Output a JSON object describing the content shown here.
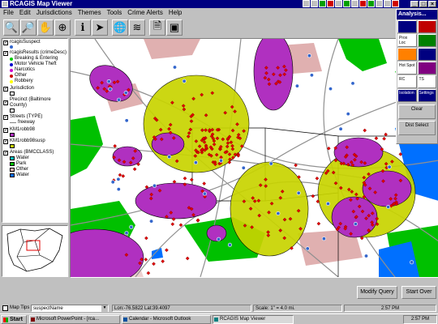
{
  "window": {
    "title": "RCAGIS Map Viewer"
  },
  "menu": [
    "File",
    "Edit",
    "Jurisdictions",
    "Themes",
    "Tools",
    "Crime Alerts",
    "Help"
  ],
  "toolbar": {
    "tools": [
      {
        "name": "zoom-in-icon",
        "glyph": "🔍"
      },
      {
        "name": "zoom-out-icon",
        "glyph": "🔎"
      },
      {
        "name": "pan-icon",
        "glyph": "✋"
      },
      {
        "name": "full-extent-icon",
        "glyph": "⊕"
      },
      {
        "name": "identify-icon",
        "glyph": "ℹ"
      },
      {
        "name": "pointer-icon",
        "glyph": "➤"
      },
      {
        "name": "globe-icon",
        "glyph": "🌐"
      },
      {
        "name": "layers-icon",
        "glyph": "≋"
      },
      {
        "name": "print-icon",
        "glyph": "🗎"
      },
      {
        "name": "save-icon",
        "glyph": "▣"
      }
    ]
  },
  "toc": {
    "layers": [
      {
        "label": "rcagisSuspect",
        "checked": true,
        "sub": [
          {
            "kind": "dot",
            "color": "#3366cc",
            "label": ""
          }
        ]
      },
      {
        "label": "rcagisResults (crimeDesc)",
        "checked": true,
        "sub": [
          {
            "kind": "dot",
            "color": "#00cc00",
            "label": "Breaking & Entering"
          },
          {
            "kind": "dot",
            "color": "#0000cc",
            "label": "Motor Vehicle Theft"
          },
          {
            "kind": "dot",
            "color": "#cc00cc",
            "label": "Narcotics"
          },
          {
            "kind": "dot",
            "color": "#cc0000",
            "label": "Other"
          },
          {
            "kind": "dot",
            "color": "#ffff00",
            "label": "Robbery"
          }
        ]
      },
      {
        "label": "Jurisdiction",
        "checked": true,
        "sub": [
          {
            "kind": "swatch",
            "color": "#ffffff",
            "label": ""
          }
        ]
      },
      {
        "label": "Precinct (Baltimore County)",
        "checked": true,
        "sub": [
          {
            "kind": "swatch",
            "color": "#ffffff",
            "label": ""
          }
        ]
      },
      {
        "label": "Streets (TYPE)",
        "checked": true,
        "sub": [
          {
            "kind": "line",
            "color": "#808080",
            "label": "freeway"
          }
        ]
      },
      {
        "label": "KM1robb98",
        "checked": true,
        "sub": [
          {
            "kind": "swatch",
            "color": "#b030c0",
            "label": ""
          }
        ]
      },
      {
        "label": "KM1robb98susp",
        "checked": true,
        "sub": [
          {
            "kind": "swatch",
            "color": "#c8d400",
            "label": ""
          }
        ]
      },
      {
        "label": "Areas (BMCCLASS)",
        "checked": true,
        "sub": [
          {
            "kind": "swatch",
            "color": "#00c0c0",
            "label": "Water"
          },
          {
            "kind": "swatch",
            "color": "#00c000",
            "label": "Park"
          },
          {
            "kind": "swatch",
            "color": "#e0b0b0",
            "label": "Other"
          },
          {
            "kind": "swatch",
            "color": "#0070ff",
            "label": "Water"
          }
        ]
      }
    ]
  },
  "analysis": {
    "title": "Analysis...",
    "cells": [
      "",
      "",
      "Prox Loc",
      "",
      "",
      "",
      "Hot Spot",
      "",
      "RC",
      "TS",
      "Isolation",
      "Settings"
    ],
    "clear": "Clear",
    "select": "Dist Select"
  },
  "buttons": {
    "modify": "Modify Query",
    "start_over": "Start Over"
  },
  "status": {
    "map_tips": "Map Tips",
    "field": "suspectName",
    "coords": "Lon:-76.5822 Lat:39.4097",
    "scale": "Scale: 1\" = 4.0 mi.",
    "time": "2:57 PM"
  },
  "taskbar": {
    "start": "Start",
    "tasks": [
      "Microsoft PowerPoint - [rca...",
      "Calendar - Microsoft Outlook",
      "RCAGIS Map Viewer"
    ],
    "clock": "2:57 PM"
  },
  "colors": {
    "kernel_magenta": "#b030c0",
    "kernel_yellow": "#c8d400",
    "park_green": "#00c000",
    "water_blue": "#0070ff",
    "other_pink": "#e0b0b0",
    "incident_red": "#e00000",
    "suspect_blue": "#3366cc"
  }
}
